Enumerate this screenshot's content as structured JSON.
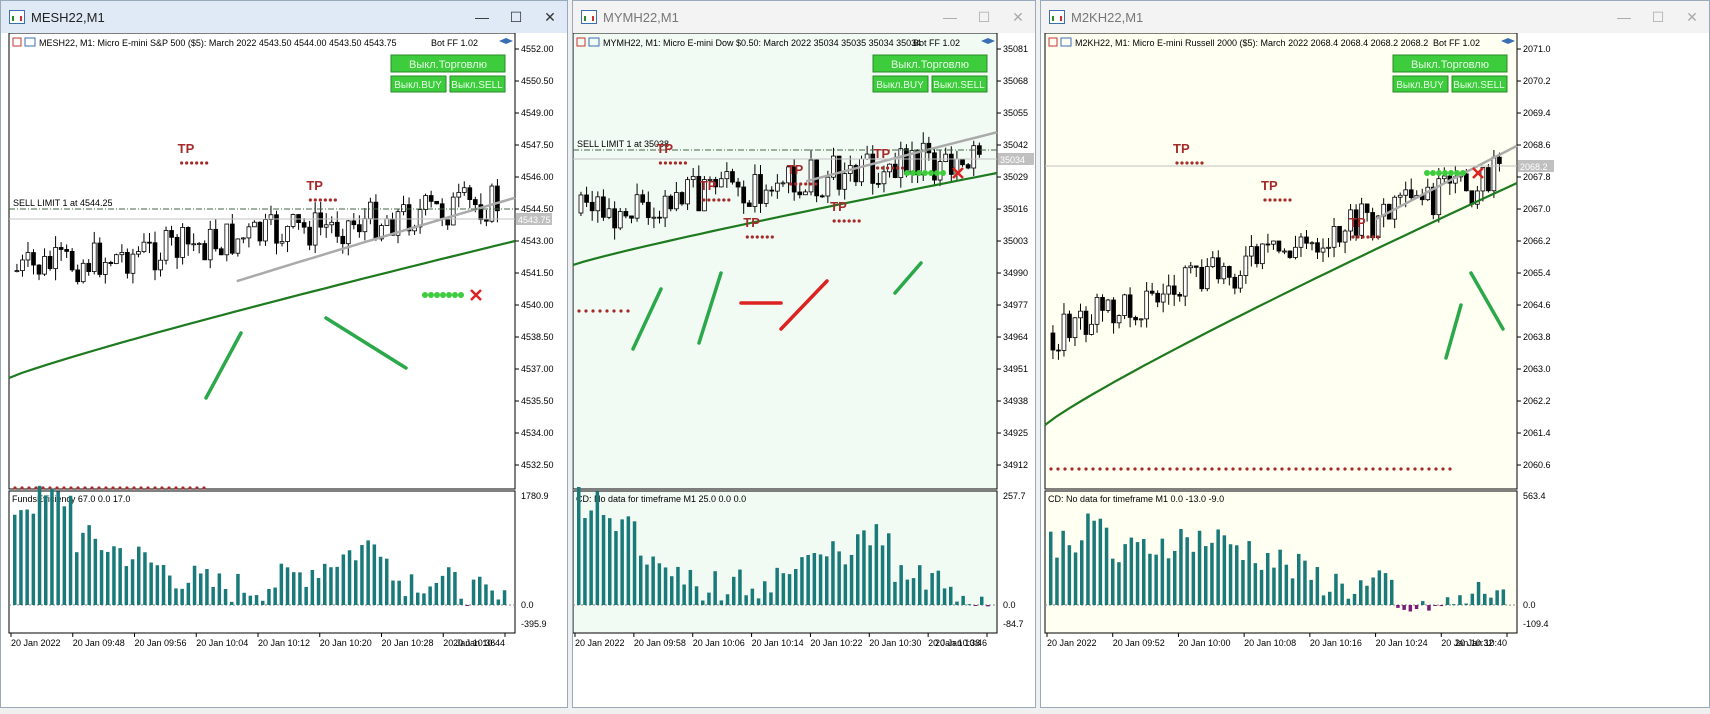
{
  "windows": [
    {
      "title": "MESH22,M1",
      "active": true,
      "header": "MESH22, M1:  Micro E-mini S&P 500 ($5): March 2022   4543.50 4544.00 4543.50 4543.75",
      "bot": "Bot FF 1.02",
      "buttons": {
        "trade": "Выкл.Торговлю",
        "buy": "Выкл.BUY",
        "sell": "Выкл.SELL"
      },
      "sell_limit": "SELL LIMIT 1 at 4544.25",
      "price_tag": "4543.75",
      "price_axis": [
        "4552.00",
        "4550.50",
        "4549.00",
        "4547.50",
        "4546.00",
        "4544.50",
        "4543.00",
        "4541.50",
        "4540.00",
        "4538.50",
        "4537.00",
        "4535.50",
        "4534.00",
        "4532.50"
      ],
      "tp_labels": [
        "TP",
        "TP"
      ],
      "sub_label": "FundsEfficiency 67.0 0.0 17.0",
      "sub_axis": [
        "1780.9",
        "0.0",
        "-395.9"
      ],
      "time_axis": [
        "20 Jan 2022",
        "20 Jan 09:48",
        "20 Jan 09:56",
        "20 Jan 10:04",
        "20 Jan 10:12",
        "20 Jan 10:20",
        "20 Jan 10:28",
        "20 Jan 10:36",
        "20 Jan 10:44"
      ]
    },
    {
      "title": "MYMH22,M1",
      "active": false,
      "header": "MYMH22, M1:  Micro E-mini Dow $0.50: March 2022   35034 35035 35034 35034",
      "bot": "Bot FF 1.02",
      "buttons": {
        "trade": "Выкл.Торговлю",
        "buy": "Выкл.BUY",
        "sell": "Выкл.SELL"
      },
      "sell_limit": "SELL LIMIT 1 at 35038",
      "price_tag": "35034",
      "price_axis": [
        "35081",
        "35068",
        "35055",
        "35042",
        "35029",
        "35016",
        "35003",
        "34990",
        "34977",
        "34964",
        "34951",
        "34938",
        "34925",
        "34912"
      ],
      "tp_labels": [
        "TP",
        "TP",
        "TP",
        "TP",
        "TP",
        "TP"
      ],
      "sub_label": "CD: No data for timeframe M1 25.0 0.0 0.0",
      "sub_axis": [
        "257.7",
        "0.0",
        "-84.7"
      ],
      "time_axis": [
        "20 Jan 2022",
        "20 Jan 09:58",
        "20 Jan 10:06",
        "20 Jan 10:14",
        "20 Jan 10:22",
        "20 Jan 10:30",
        "20 Jan 10:38",
        "20 Jan 10:46"
      ]
    },
    {
      "title": "M2KH22,M1",
      "active": false,
      "header": "M2KH22, M1:  Micro E-mini Russell 2000 ($5): March 2022   2068.4 2068.4 2068.2 2068.2",
      "bot": "Bot FF 1.02",
      "buttons": {
        "trade": "Выкл.Торговлю",
        "buy": "Выкл.BUY",
        "sell": "Выкл.SELL"
      },
      "sell_limit": "",
      "price_tag": "2068.2",
      "price_axis": [
        "2071.0",
        "2070.2",
        "2069.4",
        "2068.6",
        "2067.8",
        "2067.0",
        "2066.2",
        "2065.4",
        "2064.6",
        "2063.8",
        "2063.0",
        "2062.2",
        "2061.4",
        "2060.6"
      ],
      "tp_labels": [
        "TP",
        "TP",
        "TP"
      ],
      "sub_label": "CD: No data for timeframe M1 0.0 -13.0 -9.0",
      "sub_axis": [
        "563.4",
        "0.0",
        "-109.4"
      ],
      "time_axis": [
        "20 Jan 2022",
        "20 Jan 09:52",
        "20 Jan 10:00",
        "20 Jan 10:08",
        "20 Jan 10:16",
        "20 Jan 10:24",
        "20 Jan 10:32",
        "20 Jan 10:40"
      ]
    }
  ],
  "window_controls": {
    "minimize": "—",
    "maximize": "☐",
    "close": "✕"
  },
  "colors": {
    "bg1": "#ffffff",
    "bg2": "#f2fbf3",
    "bg3": "#fffff2",
    "ma_green": "#1e7a1e",
    "ma_gray": "#aaaaaa",
    "hist": "#1a7a7a",
    "hist_neg": "#7a1a7a",
    "tp": "#a52a2a",
    "button": "#3ccc3c",
    "trend_green": "#2aa84a",
    "trend_red": "#dd2222"
  }
}
